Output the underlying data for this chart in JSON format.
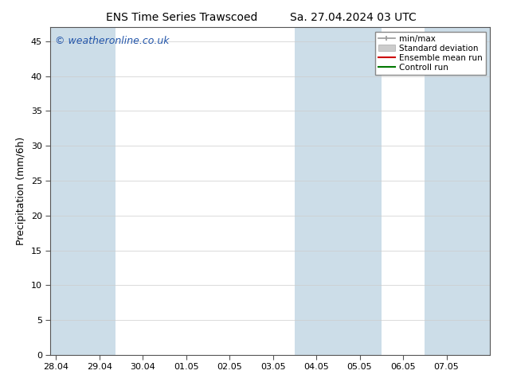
{
  "title": "ENS Time Series Trawscoed",
  "title2": "Sa. 27.04.2024 03 UTC",
  "ylabel": "Precipitation (mm/6h)",
  "watermark": "© weatheronline.co.uk",
  "x_tick_labels": [
    "28.04",
    "29.04",
    "30.04",
    "01.05",
    "02.05",
    "03.05",
    "04.05",
    "05.05",
    "06.05",
    "07.05"
  ],
  "x_tick_positions": [
    0,
    4,
    8,
    12,
    16,
    20,
    24,
    28,
    32,
    36
  ],
  "ylim": [
    0,
    47
  ],
  "yticks": [
    0,
    5,
    10,
    15,
    20,
    25,
    30,
    35,
    40,
    45
  ],
  "xlim": [
    -0.5,
    40
  ],
  "shaded_bands": [
    {
      "x_start": -0.5,
      "x_end": 2.0,
      "color": "#ccdde8"
    },
    {
      "x_start": 2.0,
      "x_end": 5.5,
      "color": "#ccdde8"
    },
    {
      "x_start": 22.0,
      "x_end": 26.5,
      "color": "#ccdde8"
    },
    {
      "x_start": 26.5,
      "x_end": 30.0,
      "color": "#ccdde8"
    },
    {
      "x_start": 34.0,
      "x_end": 40.0,
      "color": "#ccdde8"
    }
  ],
  "background_color": "#ffffff",
  "plot_bg_color": "#ffffff",
  "grid_color": "#cccccc",
  "legend_items": [
    {
      "label": "min/max",
      "type": "minmax",
      "color": "#aabbcc"
    },
    {
      "label": "Standard deviation",
      "type": "stddev",
      "color": "#bbccdd"
    },
    {
      "label": "Ensemble mean run",
      "type": "line",
      "color": "#cc0000",
      "lw": 1.5
    },
    {
      "label": "Controll run",
      "type": "line",
      "color": "#007700",
      "lw": 1.5
    }
  ],
  "title_fontsize": 10,
  "axis_fontsize": 9,
  "tick_fontsize": 8,
  "watermark_color": "#2255aa",
  "watermark_fontsize": 9
}
